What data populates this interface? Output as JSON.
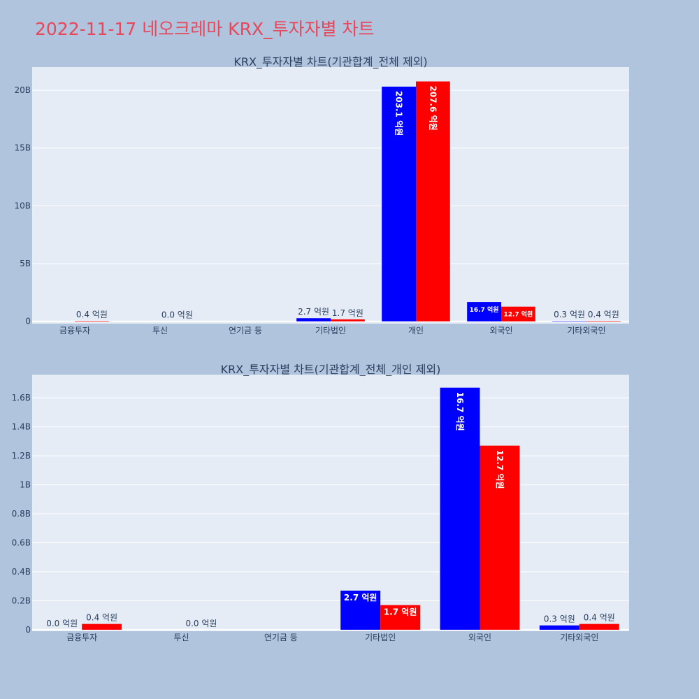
{
  "page_title": "2022-11-17 네오크레마 KRX_투자자별 차트",
  "colors": {
    "buy": "#0000ff",
    "sell": "#ff0000",
    "plot_bg": "#e5ecf6",
    "page_bg": "#b0c4de",
    "title": "#e8475a"
  },
  "chart_data": [
    {
      "type": "bar",
      "title": "KRX_투자자별 차트(기관합계_전체 제외)",
      "categories": [
        "금융투자",
        "투신",
        "연기금 등",
        "기타법인",
        "개인",
        "외국인",
        "기타외국인"
      ],
      "series": [
        {
          "values": [
            0.0,
            0.0,
            0.0,
            0.27,
            20.31,
            1.67,
            0.03
          ],
          "labels": [
            "",
            "",
            "",
            "2.7 억원",
            "203.1 억원",
            "16.7 억원",
            "0.3 억원"
          ]
        },
        {
          "values": [
            0.04,
            0.0,
            0.0,
            0.17,
            20.76,
            1.27,
            0.04
          ],
          "labels": [
            "0.4 억원",
            "0.0 억원",
            "",
            "1.7 억원",
            "207.6 억원",
            "12.7 억원",
            "0.4 억원"
          ]
        }
      ],
      "yticks": [
        "0",
        "5B",
        "10B",
        "15B",
        "20B"
      ],
      "ytick_values": [
        0,
        5,
        10,
        15,
        20
      ],
      "ylim": [
        -0.2,
        22
      ],
      "grid": true
    },
    {
      "type": "bar",
      "title": "KRX_투자자별 차트(기관합계_전체_개인 제외)",
      "categories": [
        "금융투자",
        "투신",
        "연기금 등",
        "기타법인",
        "외국인",
        "기타외국인"
      ],
      "series": [
        {
          "values": [
            0.0,
            0.0,
            0.0,
            0.27,
            1.67,
            0.03
          ],
          "labels": [
            "0.0 억원",
            "",
            "",
            "2.7 억원",
            "16.7 억원",
            "0.3 억원"
          ]
        },
        {
          "values": [
            0.04,
            0.0,
            0.0,
            0.17,
            1.27,
            0.04
          ],
          "labels": [
            "0.4 억원",
            "0.0 억원",
            "",
            "1.7 억원",
            "12.7 억원",
            "0.4 억원"
          ]
        }
      ],
      "yticks": [
        "0",
        "0.2B",
        "0.4B",
        "0.6B",
        "0.8B",
        "1B",
        "1.2B",
        "1.4B",
        "1.6B"
      ],
      "ytick_values": [
        0,
        0.2,
        0.4,
        0.6,
        0.8,
        1.0,
        1.2,
        1.4,
        1.6
      ],
      "ylim": [
        -0.01,
        1.76
      ],
      "grid": true
    }
  ]
}
